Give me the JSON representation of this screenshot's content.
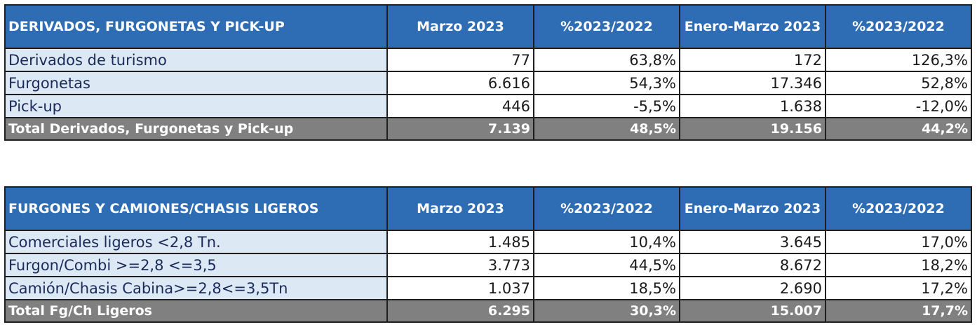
{
  "tables": [
    {
      "title": "DERIVADOS, FURGONETAS Y PICK-UP",
      "columns": [
        "Marzo 2023",
        "%2023/2022",
        "Enero-Marzo 2023",
        "%2023/2022"
      ],
      "rows": [
        {
          "label": "Derivados de turismo",
          "values": [
            "77",
            "63,8%",
            "172",
            "126,3%"
          ]
        },
        {
          "label": "Furgonetas",
          "values": [
            "6.616",
            "54,3%",
            "17.346",
            "52,8%"
          ]
        },
        {
          "label": "Pick-up",
          "values": [
            "446",
            "-5,5%",
            "1.638",
            "-12,0%"
          ]
        }
      ],
      "total": {
        "label": "Total Derivados, Furgonetas y Pick-up",
        "values": [
          "7.139",
          "48,5%",
          "19.156",
          "44,2%"
        ]
      }
    },
    {
      "title": "FURGONES Y CAMIONES/CHASIS LIGEROS",
      "columns": [
        "Marzo 2023",
        "%2023/2022",
        "Enero-Marzo 2023",
        "%2023/2022"
      ],
      "rows": [
        {
          "label": "Comerciales ligeros <2,8 Tn.",
          "values": [
            "1.485",
            "10,4%",
            "3.645",
            "17,0%"
          ]
        },
        {
          "label": "Furgon/Combi >=2,8 <=3,5",
          "values": [
            "3.773",
            "44,5%",
            "8.672",
            "18,2%"
          ]
        },
        {
          "label": "Camión/Chasis Cabina>=2,8<=3,5Tn",
          "values": [
            "1.037",
            "18,5%",
            "2.690",
            "17,2%"
          ]
        }
      ],
      "total": {
        "label": "Total Fg/Ch Ligeros",
        "values": [
          "6.295",
          "30,3%",
          "15.007",
          "17,7%"
        ]
      }
    }
  ]
}
